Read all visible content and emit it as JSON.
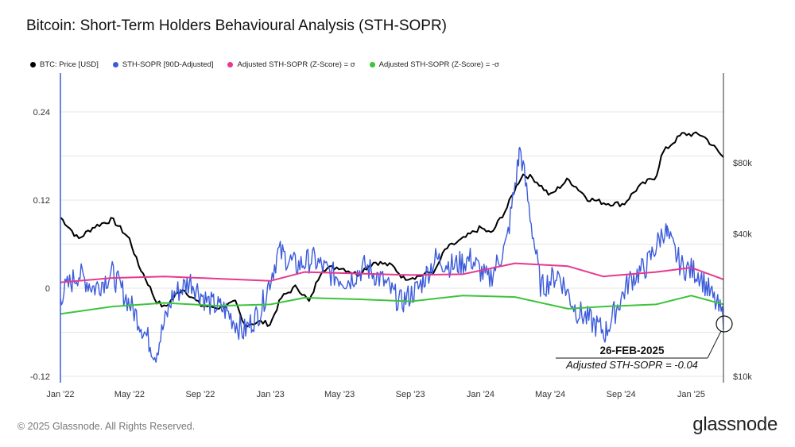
{
  "title": "Bitcoin: Short-Term Holders Behavioural Analysis (STH-SOPR)",
  "footer": "© 2025 Glassnode. All Rights Reserved.",
  "brand": "glassnode",
  "legend": [
    {
      "label": "BTC: Price [USD]",
      "color": "#000000"
    },
    {
      "label": "STH-SOPR [90D-Adjusted]",
      "color": "#3b5bdb"
    },
    {
      "label": "Adjusted STH-SOPR (Z-Score) = σ",
      "color": "#e8388f"
    },
    {
      "label": "Adjusted STH-SOPR (Z-Score) = -σ",
      "color": "#3cc43c"
    }
  ],
  "annotation": {
    "date": "26-FEB-2025",
    "label": "Adjusted STH-SOPR = -0.04"
  },
  "chart_data": {
    "type": "line",
    "x_ticks": [
      "Jan '22",
      "May '22",
      "Sep '22",
      "Jan '23",
      "May '23",
      "Sep '23",
      "Jan '24",
      "May '24",
      "Sep '24",
      "Jan '25"
    ],
    "y_left_ticks": [
      "0.24",
      "0.12",
      "0",
      "-0.12"
    ],
    "y_left_range": [
      -0.12,
      0.24
    ],
    "y_right_ticks": [
      "$80k",
      "$40k",
      "$10k"
    ],
    "y_right_scale": "log",
    "grid": true,
    "legend_position": "top-left",
    "series": [
      {
        "name": "BTC: Price [USD]",
        "axis": "right",
        "color": "#000000",
        "points": [
          [
            "2022-01-01",
            47000
          ],
          [
            "2022-02-01",
            38000
          ],
          [
            "2022-03-01",
            43000
          ],
          [
            "2022-04-01",
            46000
          ],
          [
            "2022-05-01",
            38000
          ],
          [
            "2022-05-15",
            30000
          ],
          [
            "2022-06-15",
            21000
          ],
          [
            "2022-07-01",
            19500
          ],
          [
            "2022-08-01",
            23500
          ],
          [
            "2022-09-01",
            20000
          ],
          [
            "2022-10-01",
            19500
          ],
          [
            "2022-11-01",
            20500
          ],
          [
            "2022-11-15",
            16500
          ],
          [
            "2022-12-15",
            17000
          ],
          [
            "2023-01-01",
            16600
          ],
          [
            "2023-01-20",
            21500
          ],
          [
            "2023-02-15",
            24000
          ],
          [
            "2023-03-10",
            20500
          ],
          [
            "2023-04-01",
            28500
          ],
          [
            "2023-05-01",
            29000
          ],
          [
            "2023-06-01",
            27000
          ],
          [
            "2023-07-01",
            30500
          ],
          [
            "2023-08-01",
            29300
          ],
          [
            "2023-08-20",
            26000
          ],
          [
            "2023-09-15",
            26500
          ],
          [
            "2023-10-15",
            28000
          ],
          [
            "2023-11-01",
            34500
          ],
          [
            "2023-12-01",
            38000
          ],
          [
            "2024-01-01",
            42500
          ],
          [
            "2024-01-20",
            40000
          ],
          [
            "2024-02-15",
            51000
          ],
          [
            "2024-03-14",
            71500
          ],
          [
            "2024-04-01",
            69000
          ],
          [
            "2024-05-01",
            58000
          ],
          [
            "2024-06-01",
            68000
          ],
          [
            "2024-07-05",
            56500
          ],
          [
            "2024-08-05",
            54000
          ],
          [
            "2024-09-06",
            53500
          ],
          [
            "2024-10-01",
            63000
          ],
          [
            "2024-11-01",
            70000
          ],
          [
            "2024-11-12",
            88000
          ],
          [
            "2024-12-17",
            106000
          ],
          [
            "2025-01-20",
            105000
          ],
          [
            "2025-02-26",
            84000
          ]
        ]
      },
      {
        "name": "STH-SOPR [90D-Adjusted]",
        "axis": "left",
        "color": "#3b5bdb",
        "approx_range": [
          -0.09,
          0.19
        ],
        "points": [
          [
            "2022-01-01",
            -0.01
          ],
          [
            "2022-02-01",
            0.02
          ],
          [
            "2022-03-01",
            0.0
          ],
          [
            "2022-04-01",
            0.02
          ],
          [
            "2022-05-15",
            -0.04
          ],
          [
            "2022-06-15",
            -0.09
          ],
          [
            "2022-07-15",
            -0.01
          ],
          [
            "2022-08-15",
            0.01
          ],
          [
            "2022-09-15",
            -0.02
          ],
          [
            "2022-10-15",
            -0.03
          ],
          [
            "2022-11-15",
            -0.06
          ],
          [
            "2022-12-15",
            -0.03
          ],
          [
            "2023-01-15",
            0.05
          ],
          [
            "2023-02-15",
            0.03
          ],
          [
            "2023-03-15",
            0.04
          ],
          [
            "2023-04-15",
            0.02
          ],
          [
            "2023-05-15",
            0.01
          ],
          [
            "2023-06-15",
            0.03
          ],
          [
            "2023-07-15",
            0.01
          ],
          [
            "2023-08-15",
            -0.02
          ],
          [
            "2023-09-15",
            0.0
          ],
          [
            "2023-10-15",
            0.04
          ],
          [
            "2023-11-15",
            0.03
          ],
          [
            "2023-12-15",
            0.04
          ],
          [
            "2024-01-15",
            0.01
          ],
          [
            "2024-02-15",
            0.06
          ],
          [
            "2024-03-10",
            0.19
          ],
          [
            "2024-04-15",
            0.0
          ],
          [
            "2024-05-15",
            0.02
          ],
          [
            "2024-06-15",
            -0.03
          ],
          [
            "2024-08-05",
            -0.06
          ],
          [
            "2024-09-15",
            0.01
          ],
          [
            "2024-10-15",
            0.03
          ],
          [
            "2024-11-15",
            0.08
          ],
          [
            "2024-12-15",
            0.03
          ],
          [
            "2025-01-15",
            0.02
          ],
          [
            "2025-02-26",
            -0.04
          ]
        ]
      },
      {
        "name": "Adjusted STH-SOPR (Z-Score) = σ",
        "axis": "left",
        "color": "#e8388f",
        "points": [
          [
            "2022-01-01",
            0.008
          ],
          [
            "2022-04-01",
            0.014
          ],
          [
            "2022-07-01",
            0.016
          ],
          [
            "2022-10-01",
            0.013
          ],
          [
            "2023-01-01",
            0.01
          ],
          [
            "2023-03-01",
            0.022
          ],
          [
            "2023-06-01",
            0.02
          ],
          [
            "2023-09-01",
            0.018
          ],
          [
            "2023-12-01",
            0.019
          ],
          [
            "2024-03-01",
            0.034
          ],
          [
            "2024-06-01",
            0.03
          ],
          [
            "2024-08-01",
            0.016
          ],
          [
            "2024-11-01",
            0.022
          ],
          [
            "2025-01-01",
            0.028
          ],
          [
            "2025-02-26",
            0.012
          ]
        ]
      },
      {
        "name": "Adjusted STH-SOPR (Z-Score) = -σ",
        "axis": "left",
        "color": "#3cc43c",
        "points": [
          [
            "2022-01-01",
            -0.035
          ],
          [
            "2022-04-01",
            -0.025
          ],
          [
            "2022-07-01",
            -0.02
          ],
          [
            "2022-10-01",
            -0.024
          ],
          [
            "2023-01-01",
            -0.022
          ],
          [
            "2023-03-01",
            -0.013
          ],
          [
            "2023-06-01",
            -0.015
          ],
          [
            "2023-09-01",
            -0.018
          ],
          [
            "2023-12-01",
            -0.01
          ],
          [
            "2024-03-01",
            -0.012
          ],
          [
            "2024-06-01",
            -0.028
          ],
          [
            "2024-08-01",
            -0.025
          ],
          [
            "2024-11-01",
            -0.022
          ],
          [
            "2025-01-01",
            -0.01
          ],
          [
            "2025-02-26",
            -0.022
          ]
        ]
      }
    ]
  }
}
